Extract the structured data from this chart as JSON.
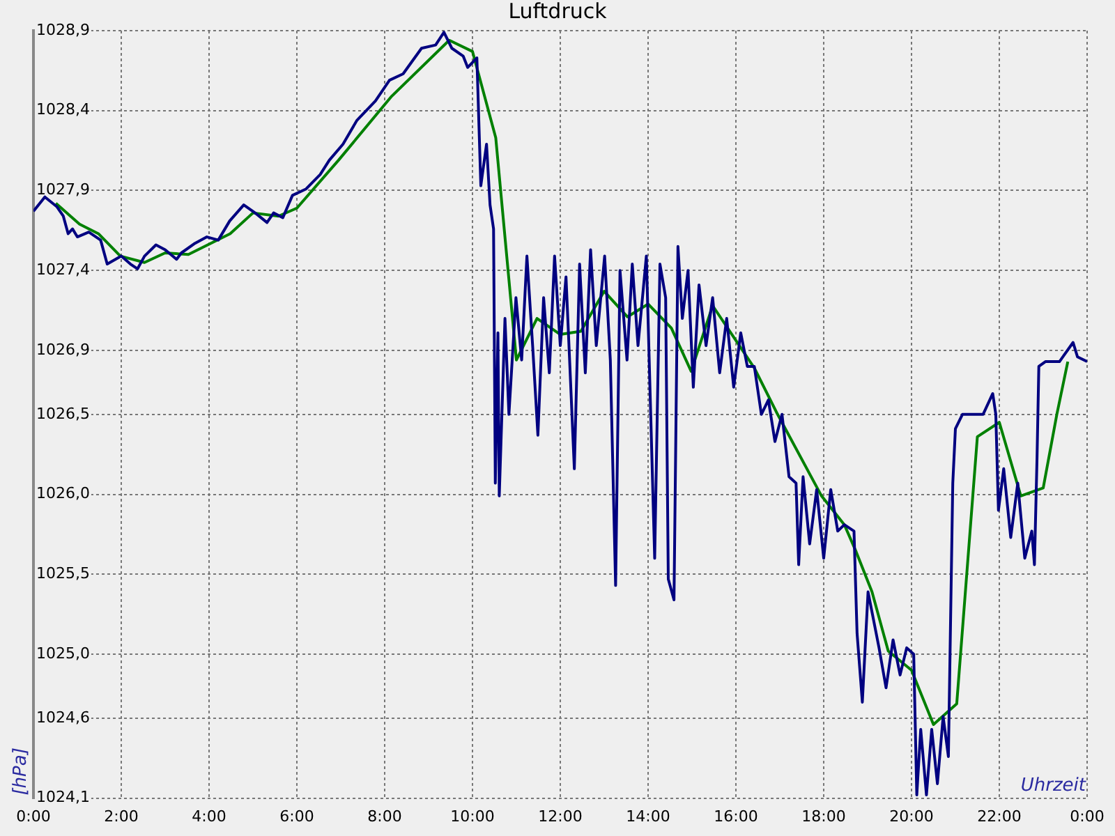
{
  "chart_data": {
    "type": "line",
    "title": "Luftdruck",
    "xlabel": "Uhrzeit",
    "ylabel": "[hPa]",
    "xlim": [
      0,
      24
    ],
    "xticks": [
      {
        "value": 0,
        "label": "0:00"
      },
      {
        "value": 2,
        "label": "2:00"
      },
      {
        "value": 4,
        "label": "4:00"
      },
      {
        "value": 6,
        "label": "6:00"
      },
      {
        "value": 8,
        "label": "8:00"
      },
      {
        "value": 10,
        "label": "10:00"
      },
      {
        "value": 12,
        "label": "12:00"
      },
      {
        "value": 14,
        "label": "14:00"
      },
      {
        "value": 16,
        "label": "16:00"
      },
      {
        "value": 18,
        "label": "18:00"
      },
      {
        "value": 20,
        "label": "20:00"
      },
      {
        "value": 22,
        "label": "22:00"
      },
      {
        "value": 24,
        "label": "0:00"
      }
    ],
    "ylim": [
      1024.1,
      1028.9
    ],
    "yticks": [
      {
        "value": 1024.1,
        "label": "1024,1"
      },
      {
        "value": 1024.6,
        "label": "1024,6"
      },
      {
        "value": 1025.0,
        "label": "1025,0"
      },
      {
        "value": 1025.5,
        "label": "1025,5"
      },
      {
        "value": 1026.0,
        "label": "1026,0"
      },
      {
        "value": 1026.5,
        "label": "1026,5"
      },
      {
        "value": 1026.9,
        "label": "1026,9"
      },
      {
        "value": 1027.4,
        "label": "1027,4"
      },
      {
        "value": 1027.9,
        "label": "1027,9"
      },
      {
        "value": 1028.4,
        "label": "1028,4"
      },
      {
        "value": 1028.9,
        "label": "1028,9"
      }
    ],
    "grid": true,
    "marker": "none",
    "line_style": "solid",
    "series": [
      {
        "color": "#000080",
        "x": [
          0,
          0.26,
          0.53,
          0.68,
          0.79,
          0.89,
          1.0,
          1.26,
          1.53,
          1.68,
          2.0,
          2.21,
          2.37,
          2.53,
          2.79,
          3.0,
          3.26,
          3.37,
          3.68,
          3.95,
          4.21,
          4.47,
          4.79,
          5.05,
          5.32,
          5.47,
          5.68,
          5.9,
          6.21,
          6.53,
          6.74,
          7.05,
          7.37,
          7.79,
          8.11,
          8.42,
          8.84,
          9.16,
          9.35,
          9.53,
          9.79,
          9.89,
          10.1,
          10.19,
          10.32,
          10.4,
          10.48,
          10.52,
          10.58,
          10.61,
          10.74,
          10.83,
          10.99,
          11.12,
          11.24,
          11.37,
          11.49,
          11.62,
          11.75,
          11.87,
          12.0,
          12.13,
          12.32,
          12.44,
          12.57,
          12.69,
          12.82,
          13.01,
          13.14,
          13.26,
          13.36,
          13.52,
          13.64,
          13.77,
          13.96,
          14.15,
          14.27,
          14.4,
          14.46,
          14.59,
          14.68,
          14.78,
          14.91,
          15.03,
          15.16,
          15.32,
          15.47,
          15.63,
          15.79,
          15.95,
          16.11,
          16.26,
          16.42,
          16.58,
          16.74,
          16.89,
          17.05,
          17.21,
          17.37,
          17.43,
          17.53,
          17.68,
          17.84,
          18.0,
          18.16,
          18.32,
          18.47,
          18.69,
          18.76,
          18.88,
          19.01,
          19.26,
          19.42,
          19.58,
          19.74,
          19.89,
          20.05,
          20.12,
          20.21,
          20.34,
          20.46,
          20.59,
          20.72,
          20.84,
          20.94,
          21.0,
          21.16,
          21.32,
          21.47,
          21.63,
          21.85,
          21.92,
          21.98,
          22.1,
          22.26,
          22.42,
          22.58,
          22.74,
          22.8,
          22.86,
          22.9,
          23.05,
          23.37,
          23.68,
          23.78,
          24.0
        ],
        "values": [
          1027.77,
          1027.86,
          1027.8,
          1027.74,
          1027.63,
          1027.66,
          1027.61,
          1027.64,
          1027.59,
          1027.44,
          1027.49,
          1027.44,
          1027.41,
          1027.49,
          1027.56,
          1027.53,
          1027.47,
          1027.51,
          1027.57,
          1027.61,
          1027.59,
          1027.71,
          1027.81,
          1027.76,
          1027.7,
          1027.76,
          1027.73,
          1027.87,
          1027.91,
          1028.0,
          1028.09,
          1028.19,
          1028.34,
          1028.46,
          1028.59,
          1028.63,
          1028.79,
          1028.81,
          1028.89,
          1028.79,
          1028.74,
          1028.67,
          1028.73,
          1027.93,
          1028.19,
          1027.81,
          1027.66,
          1026.07,
          1027.01,
          1025.99,
          1027.1,
          1026.5,
          1027.23,
          1026.84,
          1027.49,
          1026.93,
          1026.37,
          1027.23,
          1026.76,
          1027.49,
          1026.93,
          1027.36,
          1026.16,
          1027.44,
          1026.76,
          1027.53,
          1026.93,
          1027.49,
          1026.84,
          1025.43,
          1027.4,
          1026.84,
          1027.44,
          1026.93,
          1027.49,
          1025.6,
          1027.44,
          1027.23,
          1025.47,
          1025.34,
          1027.55,
          1027.1,
          1027.4,
          1026.67,
          1027.31,
          1026.93,
          1027.23,
          1026.76,
          1027.1,
          1026.67,
          1027.01,
          1026.8,
          1026.8,
          1026.5,
          1026.59,
          1026.33,
          1026.5,
          1026.11,
          1026.07,
          1025.56,
          1026.11,
          1025.69,
          1026.03,
          1025.6,
          1026.03,
          1025.77,
          1025.81,
          1025.77,
          1025.13,
          1024.7,
          1025.39,
          1025.04,
          1024.79,
          1025.09,
          1024.87,
          1025.04,
          1025.0,
          1024.12,
          1024.53,
          1024.12,
          1024.53,
          1024.19,
          1024.61,
          1024.36,
          1026.07,
          1026.41,
          1026.5,
          1026.5,
          1026.5,
          1026.5,
          1026.63,
          1026.5,
          1025.9,
          1026.16,
          1025.73,
          1026.07,
          1025.6,
          1025.77,
          1025.56,
          1026.24,
          1026.8,
          1026.83,
          1026.83,
          1026.95,
          1026.86,
          1026.83
        ]
      },
      {
        "color": "#008000",
        "x": [
          0.51,
          1.05,
          1.48,
          1.98,
          2.53,
          3.0,
          3.53,
          4.48,
          5.0,
          5.58,
          6.0,
          6.95,
          8.16,
          9.47,
          10.0,
          10.53,
          11.0,
          11.47,
          12.0,
          12.47,
          13.0,
          13.53,
          14.0,
          14.53,
          14.98,
          15.47,
          16.42,
          16.95,
          17.95,
          18.47,
          18.74,
          19.1,
          19.47,
          20.0,
          20.5,
          21.03,
          21.5,
          22.0,
          22.49,
          23.0,
          23.31,
          23.56
        ],
        "values": [
          1027.82,
          1027.69,
          1027.63,
          1027.49,
          1027.45,
          1027.51,
          1027.5,
          1027.63,
          1027.76,
          1027.74,
          1027.79,
          1028.09,
          1028.49,
          1028.84,
          1028.77,
          1028.23,
          1026.84,
          1027.1,
          1027.0,
          1027.02,
          1027.27,
          1027.11,
          1027.19,
          1027.04,
          1026.77,
          1027.18,
          1026.79,
          1026.5,
          1025.99,
          1025.81,
          1025.64,
          1025.39,
          1025.02,
          1024.9,
          1024.56,
          1024.69,
          1026.36,
          1026.45,
          1025.99,
          1026.04,
          1026.5,
          1026.83
        ]
      }
    ]
  }
}
